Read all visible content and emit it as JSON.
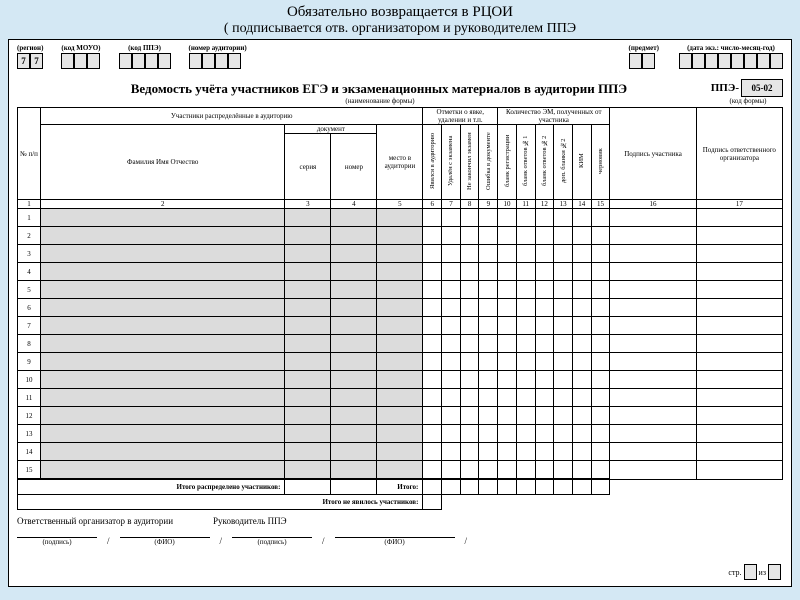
{
  "header": {
    "title1": "Обязательно возвращается в РЦОИ",
    "title2": "( подписывается отв. организатором и руководителем ППЭ"
  },
  "top_fields": {
    "region_label": "(регион)",
    "region_values": [
      "7",
      "7"
    ],
    "mouo_label": "(код МОУО)",
    "mouo_boxes": 3,
    "ppe_label": "(код ППЭ)",
    "ppe_boxes": 4,
    "aud_label": "(номер аудитории)",
    "aud_boxes": 4,
    "subj_label": "(предмет)",
    "subj_boxes": 2,
    "date_label": "(дата экз.: число-месяц-год)",
    "date_boxes": 8
  },
  "form_title": "Ведомость учёта участников ЕГЭ и экзаменационных материалов в аудитории ППЭ",
  "form_code_prefix": "ППЭ-",
  "form_code": "05-02",
  "subhead_left_blank": "",
  "subhead_center": "(наименование формы)",
  "subhead_right": "(код формы)",
  "columns": {
    "npp": "№ п/п",
    "participants": "Участники распределённые в аудиторию",
    "fio": "Фамилия Имя Отчество",
    "doc": "документ",
    "doc_series": "серия",
    "doc_number": "номер",
    "place": "место в аудито­рии",
    "marks": "Отметки о явке, удалении и т.п.",
    "mark1": "Явился в аудиторию",
    "mark2": "Удалён с экзамена",
    "mark3": "Не закончил экзамен",
    "mark4": "Ошибка в документе",
    "em": "Количество ЭМ, полученных от участника",
    "em1": "бланк регистрации",
    "em2": "бланк ответов №1",
    "em3": "бланк ответов №2",
    "em4": "доп. бланки №2",
    "em5": "КИМ",
    "em6": "черновик",
    "sig_part": "Подпись участника",
    "sig_org": "Подпись ответственного организатора",
    "nums": [
      "1",
      "2",
      "3",
      "4",
      "5",
      "6",
      "7",
      "8",
      "9",
      "10",
      "11",
      "12",
      "13",
      "14",
      "15",
      "16",
      "17"
    ]
  },
  "rows": 15,
  "totals": {
    "label1": "Итого распределено участников:",
    "label2": "Итого:",
    "label3": "Итого не явилось участников:"
  },
  "signatures": {
    "org_label": "Ответственный организатор в аудитории",
    "head_label": "Руководитель ППЭ",
    "podpis": "(подпись)",
    "fio_lbl": "(ФИО)"
  },
  "page": {
    "str": "стр.",
    "iz": "из"
  },
  "colors": {
    "page_bg": "#d4e8f4",
    "sheet_bg": "#ffffff",
    "shaded": "#dcdcdc",
    "border": "#000000"
  }
}
